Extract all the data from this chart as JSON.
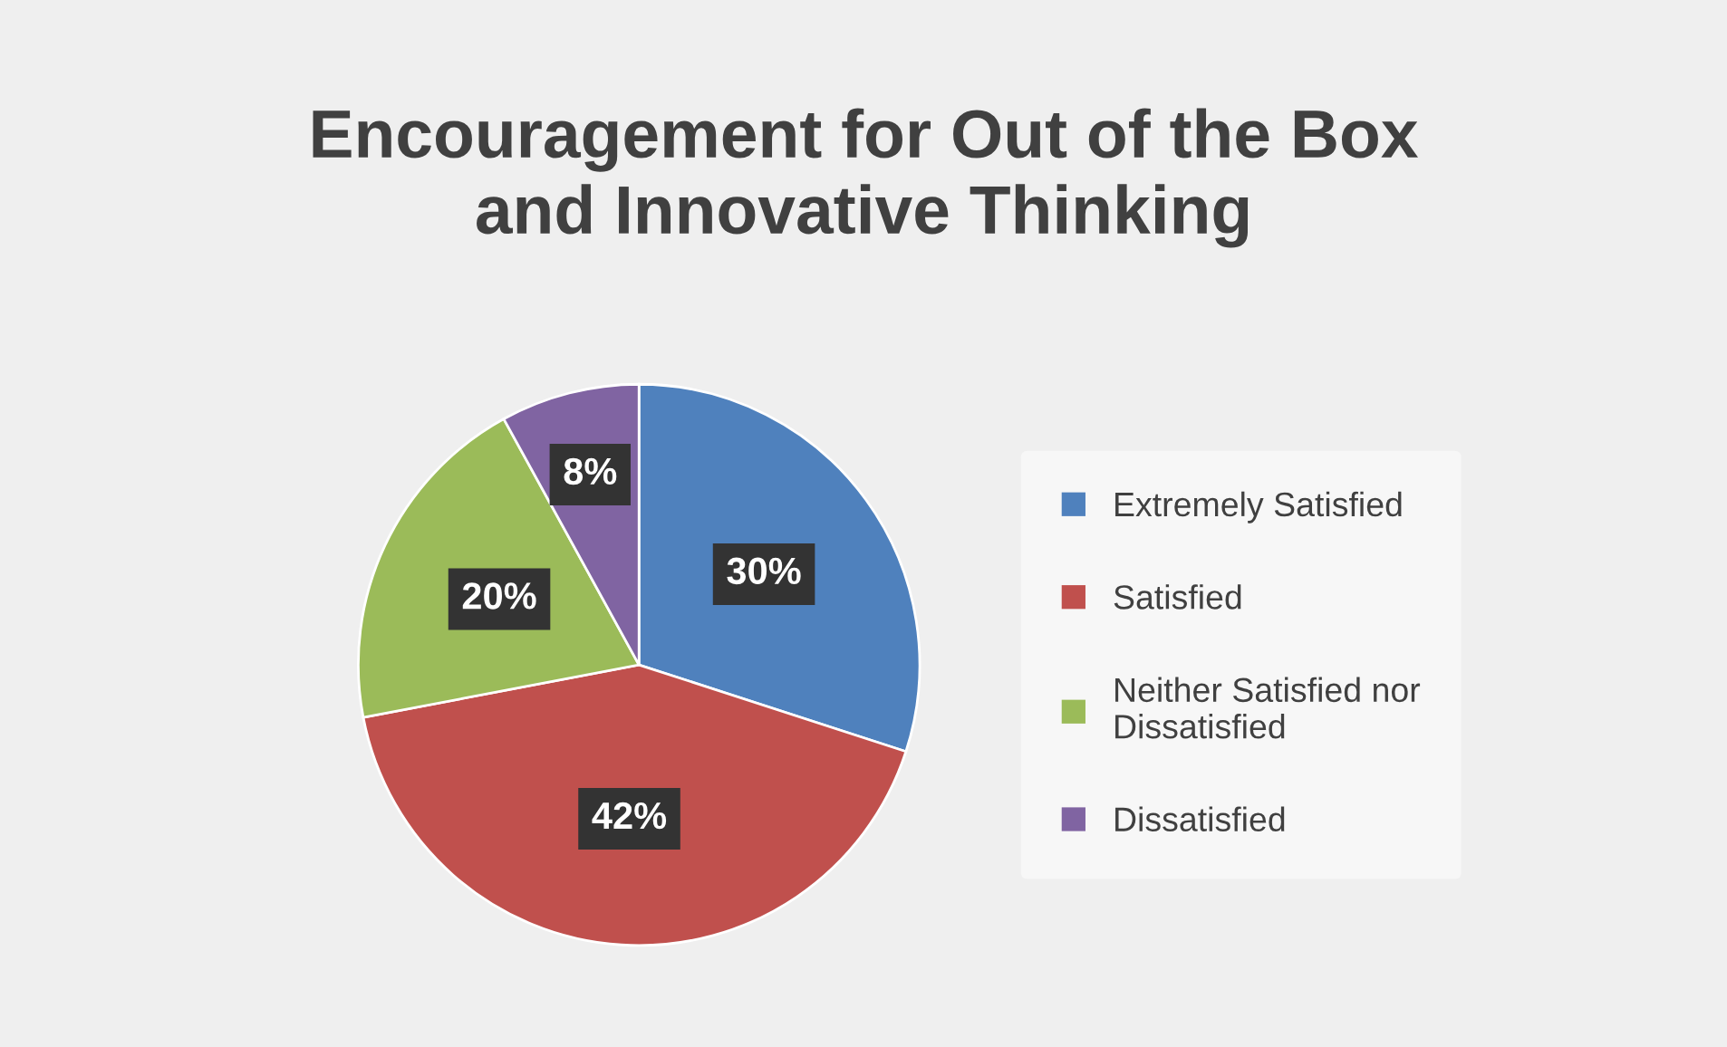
{
  "chart_data": {
    "type": "pie",
    "title": "Encouragement for Out of the Box\nand Innovative Thinking",
    "categories": [
      "Extremely Satisfied",
      "Satisfied",
      "Neither Satisfied nor\nDissatisfied",
      "Dissatisfied"
    ],
    "values": [
      30,
      42,
      20,
      8
    ],
    "colors": [
      "#4f81bd",
      "#c0504d",
      "#9bbb59",
      "#8064a2"
    ],
    "value_labels": [
      "30%",
      "42%",
      "20%",
      "8%"
    ],
    "legend": "right"
  }
}
